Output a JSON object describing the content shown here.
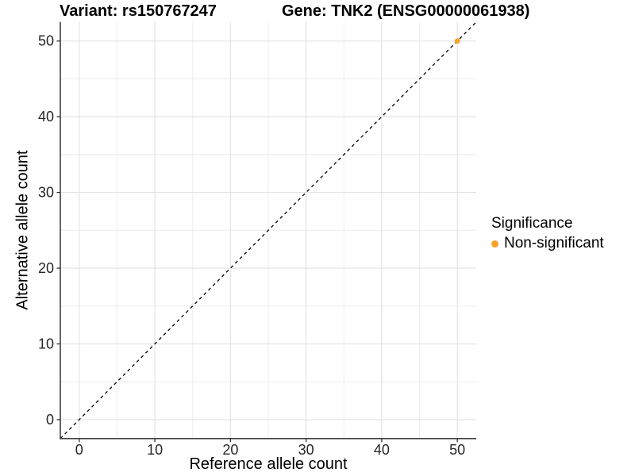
{
  "chart_data": {
    "type": "scatter",
    "titles": {
      "left": "Variant: rs150767247",
      "right": "Gene: TNK2 (ENSG00000061938)"
    },
    "xlabel": "Reference allele count",
    "ylabel": "Alternative allele count",
    "xlim": [
      -2.5,
      52.5
    ],
    "ylim": [
      -2.5,
      52.5
    ],
    "xticks": [
      0,
      10,
      20,
      30,
      40,
      50
    ],
    "yticks": [
      0,
      10,
      20,
      30,
      40,
      50
    ],
    "xminor": [
      5,
      15,
      25,
      35,
      45
    ],
    "yminor": [
      5,
      15,
      25,
      35,
      45
    ],
    "grid": "major+minor",
    "identity_line": {
      "type": "y=x",
      "style": "dashed",
      "color": "#000000"
    },
    "series": [
      {
        "name": "Non-significant",
        "color": "#F8A22B",
        "points": [
          {
            "x": 50,
            "y": 50
          }
        ]
      }
    ],
    "legend": {
      "title": "Significance",
      "position": "right",
      "items": [
        {
          "label": "Non-significant",
          "color": "#F8A22B"
        }
      ]
    },
    "colors": {
      "background": "#FFFFFF",
      "grid_major": "#E4E4E4",
      "grid_minor": "#EDEDED",
      "axis_line": "#404040",
      "tick_mark": "#333333",
      "tick_text": "#262626",
      "point": "#F8A22B"
    }
  }
}
